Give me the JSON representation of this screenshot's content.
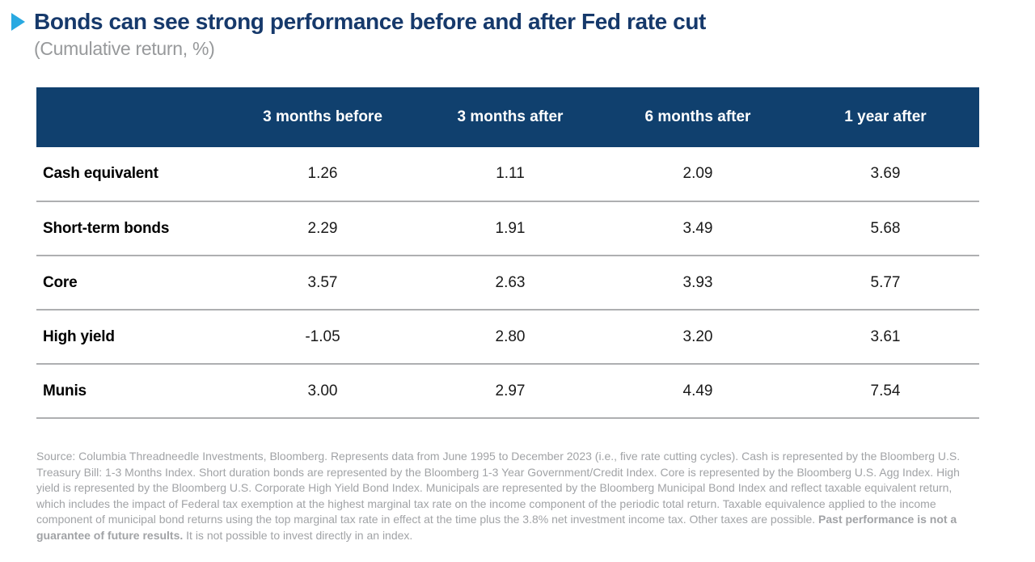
{
  "header": {
    "title": "Bonds can see strong performance before and after Fed rate cut",
    "subtitle": "(Cumulative return, %)"
  },
  "table": {
    "columns": [
      "3 months before",
      "3 months after",
      "6 months after",
      "1 year after"
    ],
    "rows": [
      {
        "label": "Cash equivalent",
        "values": [
          "1.26",
          "1.11",
          "2.09",
          "3.69"
        ]
      },
      {
        "label": "Short-term bonds",
        "values": [
          "2.29",
          "1.91",
          "3.49",
          "5.68"
        ]
      },
      {
        "label": "Core",
        "values": [
          "3.57",
          "2.63",
          "3.93",
          "5.77"
        ]
      },
      {
        "label": "High yield",
        "values": [
          "-1.05",
          "2.80",
          "3.20",
          "3.61"
        ]
      },
      {
        "label": "Munis",
        "values": [
          "3.00",
          "2.97",
          "4.49",
          "7.54"
        ]
      }
    ]
  },
  "footnote": {
    "text": "Source: Columbia Threadneedle Investments, Bloomberg. Represents data from June 1995 to December 2023 (i.e., five rate cutting cycles). Cash is represented by the Bloomberg U.S. Treasury Bill: 1-3 Months Index. Short duration bonds are represented by the Bloomberg 1-3 Year Government/Credit Index. Core is represented by the Bloomberg U.S. Agg Index. High yield is represented by the Bloomberg U.S. Corporate High Yield Bond Index. Municipals are represented by the Bloomberg Municipal Bond Index and reflect taxable equivalent return, which includes the impact of Federal tax exemption at the highest marginal tax rate on the income component of the periodic total return. Taxable equivalence applied to the income component of municipal bond returns using the top marginal tax rate in effect at the time plus the 3.8% net investment income tax. Other taxes are possible. ",
    "bold": "Past performance is not a guarantee of future results.",
    "after_bold": " It is not possible to invest directly in an index."
  },
  "colors": {
    "header_bg": "#10406e",
    "title": "#16396b",
    "accent_arrow": "#29a9e1",
    "subtitle": "#97999b",
    "footnote": "#a1a3a6",
    "separator": "#aeafb1",
    "value_text": "#1a1a1a"
  },
  "chart_data": {
    "type": "table",
    "title": "Bonds can see strong performance before and after Fed rate cut",
    "subtitle": "(Cumulative return, %)",
    "unit": "cumulative return, %",
    "categories": [
      "3 months before",
      "3 months after",
      "6 months after",
      "1 year after"
    ],
    "series": [
      {
        "name": "Cash equivalent",
        "values": [
          1.26,
          1.11,
          2.09,
          3.69
        ]
      },
      {
        "name": "Short-term bonds",
        "values": [
          2.29,
          1.91,
          3.49,
          5.68
        ]
      },
      {
        "name": "Core",
        "values": [
          3.57,
          2.63,
          3.93,
          5.77
        ]
      },
      {
        "name": "High yield",
        "values": [
          -1.05,
          2.8,
          3.2,
          3.61
        ]
      },
      {
        "name": "Munis",
        "values": [
          3.0,
          2.97,
          4.49,
          7.54
        ]
      }
    ]
  }
}
